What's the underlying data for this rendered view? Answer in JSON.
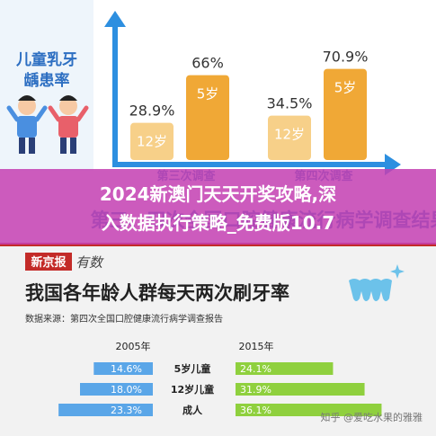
{
  "overlay_title": {
    "line1": "2024新澳门天天开奖攻略,深",
    "line2": "入数据执行策略_免费版10.7"
  },
  "colors": {
    "top_bar_light": "#f7d089",
    "top_bar_dark": "#f0a836",
    "axis": "#2d8fe0",
    "row_2005": "#5aa6e8",
    "row_2015": "#8fd03e",
    "page_bg": "#f2f2f2",
    "banner": "#c32b28"
  },
  "chart_data": [
    {
      "type": "bar",
      "title": "儿童乳牙龋患率",
      "categories": [
        "第三次调查",
        "第四次调查"
      ],
      "series": [
        {
          "name": "12岁",
          "values": [
            28.9,
            34.5
          ]
        },
        {
          "name": "5岁",
          "values": [
            66,
            70.9
          ]
        }
      ],
      "data_labels": [
        [
          "28.9%",
          "34.5%"
        ],
        [
          "66%",
          "70.9%"
        ]
      ],
      "footer_text": "第三、四次全国口腔健康流行病学调查结果",
      "ylim": [
        0,
        80
      ]
    },
    {
      "type": "bar",
      "title": "我国各年龄人群每天两次刷牙率",
      "source": "数据来源：第四次全国口腔健康流行病学调查报告",
      "masthead": "新京报",
      "masthead_sub": "有数",
      "categories": [
        "5岁儿童",
        "12岁儿童",
        "成人"
      ],
      "series": [
        {
          "name": "2005年",
          "values": [
            14.6,
            18.0,
            23.3
          ]
        },
        {
          "name": "2015年",
          "values": [
            24.1,
            31.9,
            36.1
          ]
        }
      ],
      "data_labels": [
        [
          "14.6%",
          "18.0%",
          "23.3%"
        ],
        [
          "24.1%",
          "31.9%",
          "36.1%"
        ]
      ],
      "xlim": [
        0,
        40
      ],
      "watermark": "知乎 @爱吃水果的雅雅"
    }
  ]
}
